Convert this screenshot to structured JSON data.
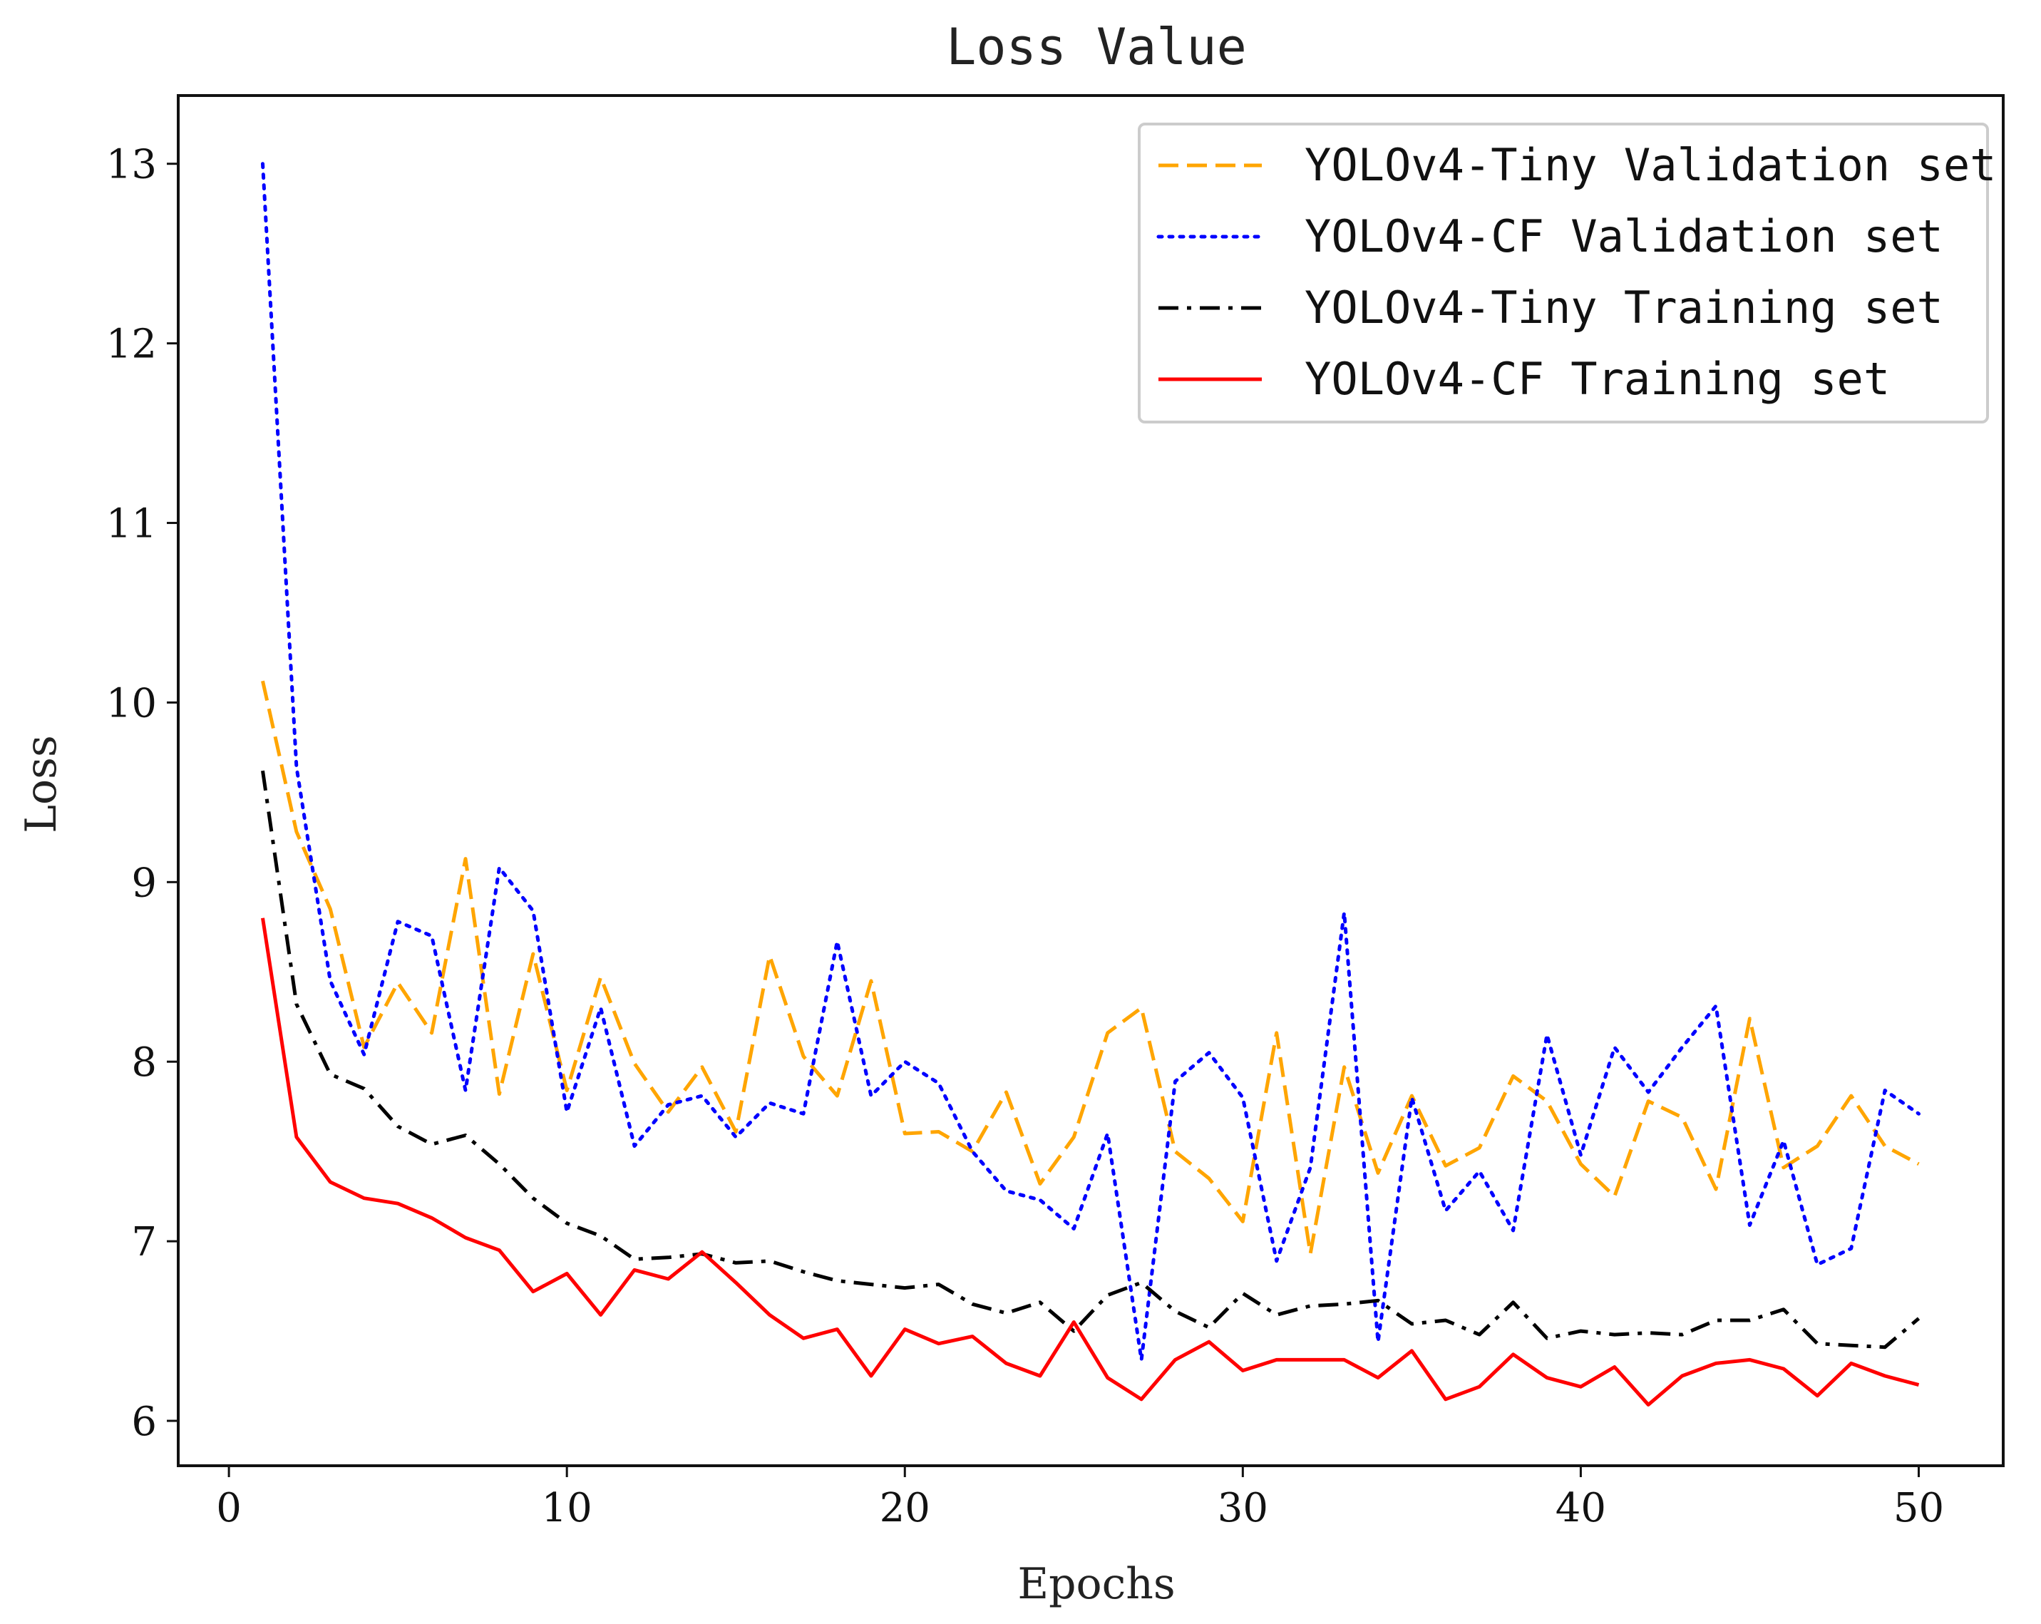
{
  "chart_data": {
    "type": "line",
    "title": "Loss Value",
    "xlabel": "Epochs",
    "ylabel": "Loss",
    "xlim": [
      -1.5,
      52.5
    ],
    "ylim": [
      5.75,
      13.38
    ],
    "xticks": [
      0,
      10,
      20,
      30,
      40,
      50
    ],
    "yticks": [
      6,
      7,
      8,
      9,
      10,
      11,
      12,
      13
    ],
    "grid": false,
    "legend_position": "top-right",
    "x": [
      1,
      2,
      3,
      4,
      5,
      6,
      7,
      8,
      9,
      10,
      11,
      12,
      13,
      14,
      15,
      16,
      17,
      18,
      19,
      20,
      21,
      22,
      23,
      24,
      25,
      26,
      27,
      28,
      29,
      30,
      31,
      32,
      33,
      34,
      35,
      36,
      37,
      38,
      39,
      40,
      41,
      42,
      43,
      44,
      45,
      46,
      47,
      48,
      49,
      50
    ],
    "series": [
      {
        "name": "YOLOv4-Tiny Validation set",
        "color": "#FFA500",
        "style": "dashed",
        "values": [
          10.12,
          9.28,
          8.85,
          8.08,
          8.44,
          8.16,
          9.13,
          7.82,
          8.6,
          7.84,
          8.47,
          7.99,
          7.72,
          7.97,
          7.61,
          8.59,
          8.03,
          7.81,
          8.45,
          7.6,
          7.61,
          7.5,
          7.83,
          7.32,
          7.58,
          8.16,
          8.3,
          7.5,
          7.35,
          7.11,
          8.16,
          6.93,
          7.97,
          7.38,
          7.81,
          7.42,
          7.52,
          7.92,
          7.78,
          7.43,
          7.25,
          7.78,
          7.69,
          7.29,
          8.24,
          7.41,
          7.53,
          7.81,
          7.53,
          7.43
        ]
      },
      {
        "name": "YOLOv4-CF Validation set",
        "color": "#0000FF",
        "style": "dotted",
        "values": [
          13.0,
          9.64,
          8.45,
          8.04,
          8.78,
          8.7,
          7.84,
          9.08,
          8.84,
          7.72,
          8.3,
          7.53,
          7.76,
          7.81,
          7.58,
          7.77,
          7.71,
          8.67,
          7.81,
          8.0,
          7.88,
          7.5,
          7.28,
          7.23,
          7.07,
          7.6,
          6.34,
          7.89,
          8.05,
          7.8,
          6.89,
          7.41,
          8.83,
          6.44,
          7.8,
          7.17,
          7.39,
          7.06,
          8.15,
          7.48,
          8.08,
          7.83,
          8.08,
          8.31,
          7.09,
          7.56,
          6.87,
          6.96,
          7.84,
          7.71
        ]
      },
      {
        "name": "YOLOv4-Tiny Training set",
        "color": "#000000",
        "style": "dashdot",
        "values": [
          9.62,
          8.32,
          7.93,
          7.85,
          7.64,
          7.54,
          7.59,
          7.43,
          7.24,
          7.1,
          7.03,
          6.9,
          6.91,
          6.93,
          6.88,
          6.89,
          6.83,
          6.78,
          6.76,
          6.74,
          6.76,
          6.65,
          6.6,
          6.66,
          6.5,
          6.7,
          6.77,
          6.61,
          6.52,
          6.71,
          6.59,
          6.64,
          6.65,
          6.67,
          6.54,
          6.56,
          6.48,
          6.66,
          6.46,
          6.5,
          6.48,
          6.49,
          6.48,
          6.56,
          6.56,
          6.62,
          6.43,
          6.42,
          6.41,
          6.57
        ]
      },
      {
        "name": "YOLOv4-CF Training set",
        "color": "#FF0000",
        "style": "solid",
        "values": [
          8.8,
          7.58,
          7.33,
          7.24,
          7.21,
          7.13,
          7.02,
          6.95,
          6.72,
          6.82,
          6.59,
          6.84,
          6.79,
          6.94,
          6.77,
          6.59,
          6.46,
          6.51,
          6.25,
          6.51,
          6.43,
          6.47,
          6.32,
          6.25,
          6.55,
          6.24,
          6.12,
          6.34,
          6.44,
          6.28,
          6.34,
          6.34,
          6.34,
          6.24,
          6.39,
          6.12,
          6.19,
          6.37,
          6.24,
          6.19,
          6.3,
          6.09,
          6.25,
          6.32,
          6.34,
          6.29,
          6.14,
          6.32,
          6.25,
          6.2
        ]
      }
    ]
  }
}
